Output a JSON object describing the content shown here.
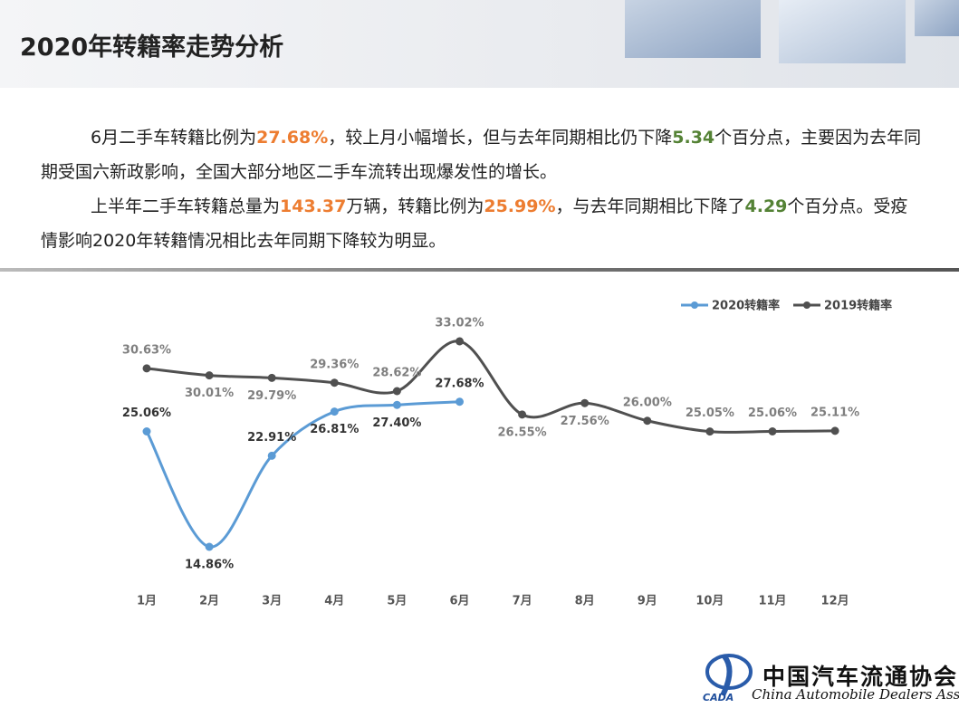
{
  "header": {
    "title": "2020年转籍率走势分析"
  },
  "paragraphs": [
    [
      {
        "text": "6月二手车转籍比例为"
      },
      {
        "text": "27.68%",
        "color": "#ed7d31"
      },
      {
        "text": "，较上月小幅增长，但与去年同期相比仍下降"
      },
      {
        "text": "5.34",
        "color": "#548235"
      },
      {
        "text": "个百分点，主要因为去年同期受国六新政影响，全国大部分地区二手车流转出现爆发性的增长。"
      }
    ],
    [
      {
        "text": "上半年二手车转籍总量为"
      },
      {
        "text": "143.37",
        "color": "#ed7d31"
      },
      {
        "text": "万辆，转籍比例为"
      },
      {
        "text": "25.99%",
        "color": "#ed7d31"
      },
      {
        "text": "，与去年同期相比下降了"
      },
      {
        "text": "4.29",
        "color": "#548235"
      },
      {
        "text": "个百分点。受疫情影响2020年转籍情况相比去年同期下降较为明显。"
      }
    ]
  ],
  "chart_data": {
    "type": "line",
    "categories": [
      "1月",
      "2月",
      "3月",
      "4月",
      "5月",
      "6月",
      "7月",
      "8月",
      "9月",
      "10月",
      "11月",
      "12月"
    ],
    "series": [
      {
        "name": "2020转籍率",
        "color": "#5b9bd5",
        "values": [
          25.06,
          14.86,
          22.91,
          26.81,
          27.4,
          27.68,
          null,
          null,
          null,
          null,
          null,
          null
        ],
        "value_labels": [
          "25.06%",
          "14.86%",
          "22.91%",
          "26.81%",
          "27.40%",
          "27.68%",
          null,
          null,
          null,
          null,
          null,
          null
        ]
      },
      {
        "name": "2019转籍率",
        "color": "#505050",
        "values": [
          30.63,
          30.01,
          29.79,
          29.36,
          28.62,
          33.02,
          26.55,
          27.56,
          26.0,
          25.05,
          25.06,
          25.11
        ],
        "value_labels": [
          "30.63%",
          "30.01%",
          "29.79%",
          "29.36%",
          "28.62%",
          "33.02%",
          "26.55%",
          "27.56%",
          "26.00%",
          "25.05%",
          "25.06%",
          "25.11%"
        ]
      }
    ],
    "legend": "top-right"
  },
  "logo": {
    "name": "中国汽车流通协会",
    "abbr": "CADA",
    "english": "China Automobile Dealers Association"
  }
}
